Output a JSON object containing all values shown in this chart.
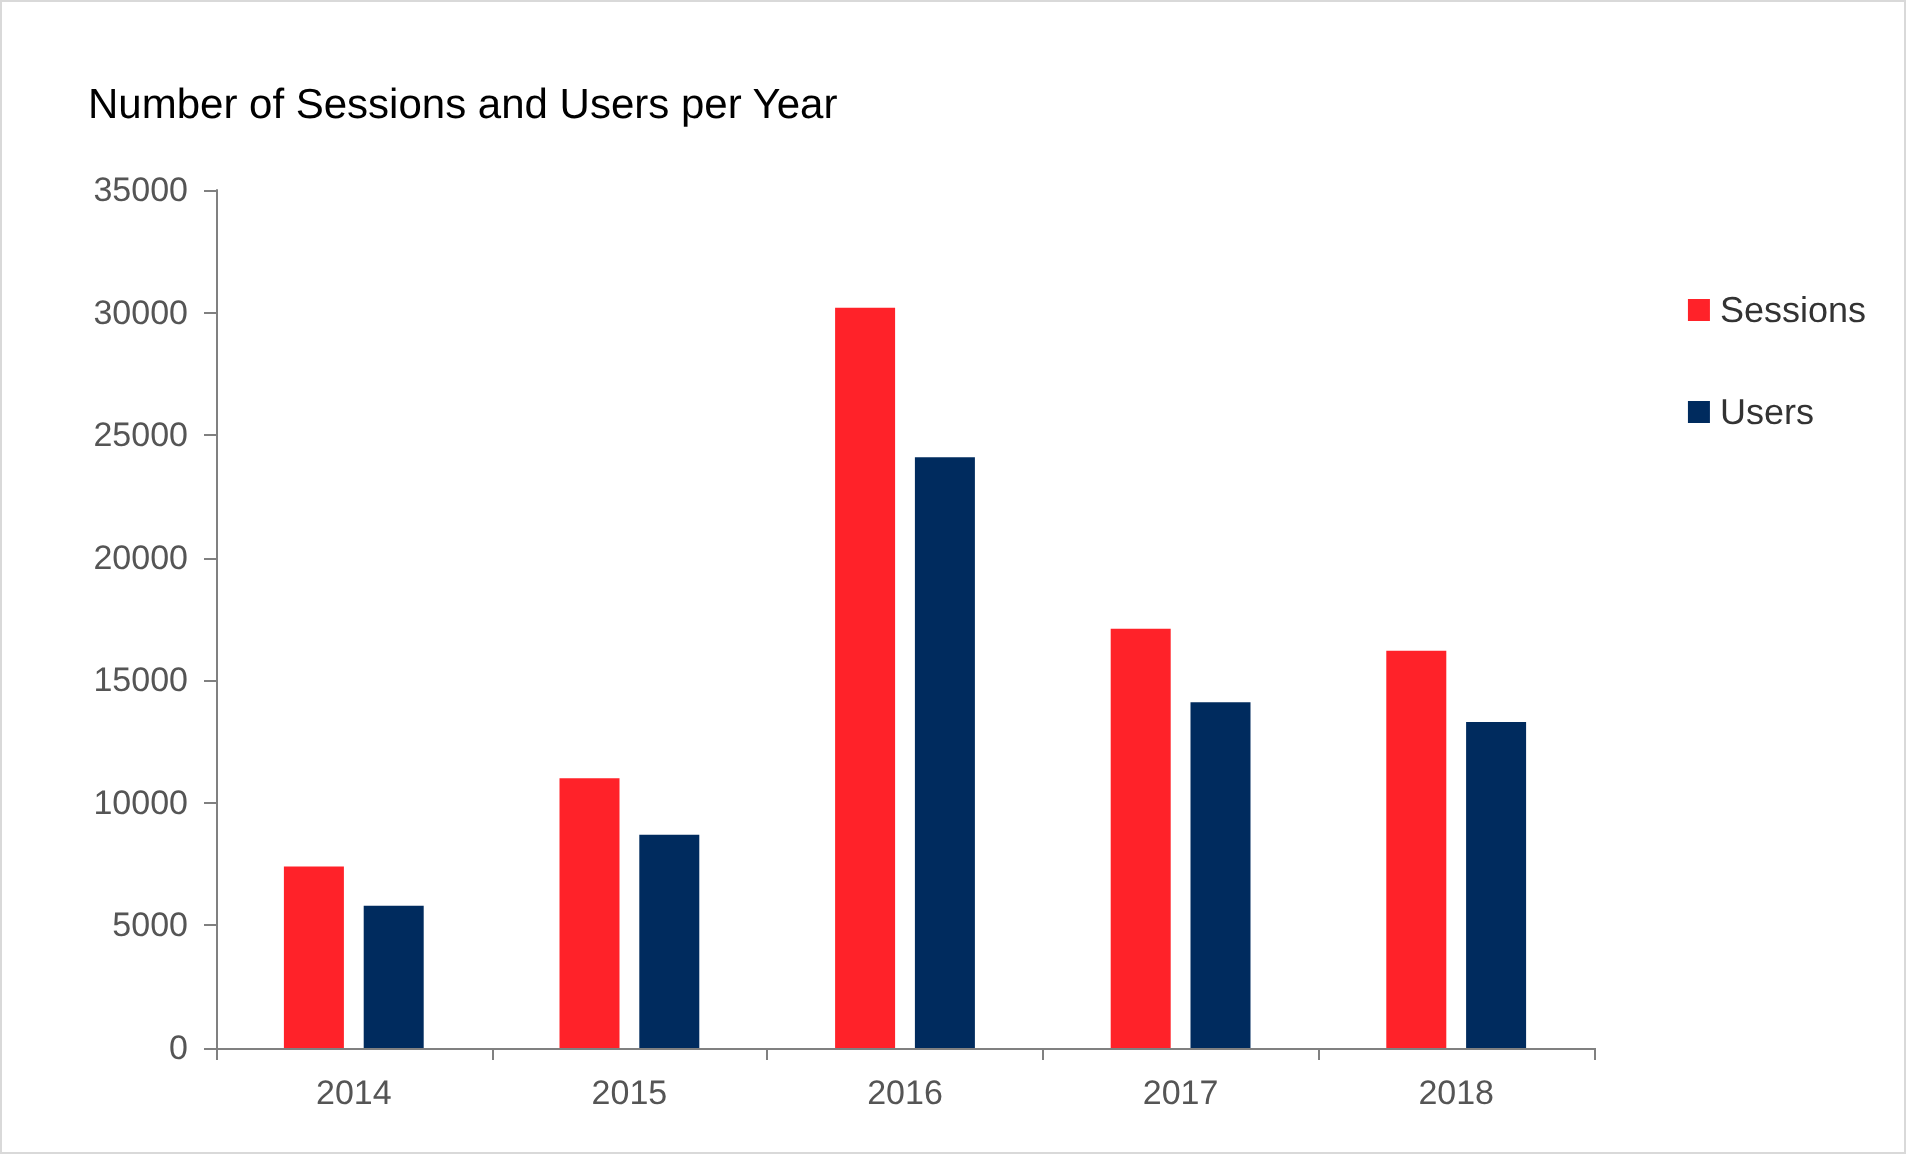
{
  "chart_data": {
    "type": "bar",
    "title": "Number of Sessions and Users per Year",
    "categories": [
      "2014",
      "2015",
      "2016",
      "2017",
      "2018"
    ],
    "series": [
      {
        "name": "Sessions",
        "color": "#ff2229",
        "values": [
          7400,
          11000,
          30200,
          17100,
          16200
        ]
      },
      {
        "name": "Users",
        "color": "#002b5e",
        "values": [
          5800,
          8700,
          24100,
          14100,
          13300
        ]
      }
    ],
    "ylim": [
      0,
      35000
    ],
    "yticks": [
      0,
      5000,
      10000,
      15000,
      20000,
      25000,
      30000,
      35000
    ],
    "grid": false,
    "legend": "right"
  }
}
